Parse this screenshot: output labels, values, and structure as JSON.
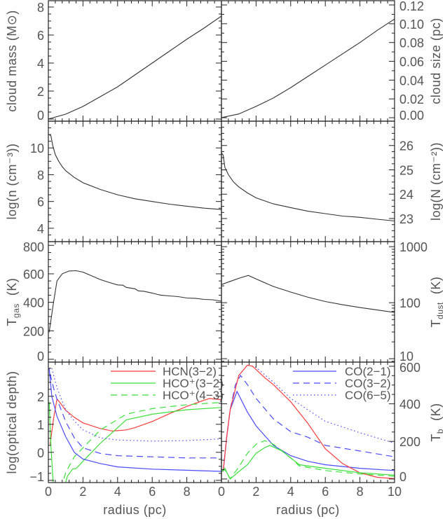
{
  "colors": {
    "axis": "#222222",
    "text": "#555555",
    "red": "#ff3b3b",
    "green": "#3be03b",
    "blue": "#4a4aff",
    "black": "#333333"
  },
  "xaxis": {
    "label": "radius (pc)",
    "xlim": [
      0,
      10
    ],
    "tick_labels_left": [
      "0",
      "2",
      "4",
      "6",
      "8"
    ],
    "tick_labels_right": [
      "0",
      "2",
      "4",
      "6",
      "8",
      "10"
    ]
  },
  "chart_data": [
    {
      "type": "line",
      "axis_side": "left",
      "scale": "linear",
      "ylabel": "cloud mass (M⊙)",
      "ylim": [
        -0.15,
        8.45
      ],
      "yticks": [
        0,
        2,
        4,
        6,
        8
      ],
      "ytick_labels": [
        "0",
        "2",
        "4",
        "6",
        "8"
      ],
      "yminor": 0.5,
      "series": [
        {
          "color": "black",
          "style": "solid",
          "x": [
            0,
            1,
            2,
            3,
            4,
            5,
            6,
            7,
            8,
            9,
            10
          ],
          "y": [
            0,
            0.35,
            0.9,
            1.6,
            2.3,
            3.15,
            4.0,
            4.85,
            5.7,
            6.5,
            7.35
          ]
        }
      ]
    },
    {
      "type": "line",
      "axis_side": "right",
      "scale": "linear",
      "ylabel": "cloud size (pc)",
      "ylim": [
        -0.0037,
        0.1245
      ],
      "yticks": [
        0,
        0.02,
        0.04,
        0.06,
        0.08,
        0.1,
        0.12
      ],
      "ytick_labels": [
        "0.00",
        "0.02",
        "0.04",
        "0.06",
        "0.08",
        "0.10",
        "0.12"
      ],
      "yminor": 0.01,
      "series": [
        {
          "color": "black",
          "style": "solid",
          "x": [
            0,
            1,
            2,
            3,
            4,
            5,
            6,
            7,
            8,
            9,
            10
          ],
          "y": [
            0,
            0.004,
            0.012,
            0.021,
            0.032,
            0.044,
            0.056,
            0.068,
            0.08,
            0.093,
            0.105
          ]
        }
      ]
    },
    {
      "type": "line",
      "axis_side": "left",
      "scale": "linear",
      "ylabel": "log(n (cm⁻³))",
      "ylim": [
        3.0,
        12.0
      ],
      "yticks": [
        4,
        6,
        8,
        10
      ],
      "ytick_labels": [
        "4",
        "6",
        "8",
        "10"
      ],
      "yminor": 0.5,
      "series": [
        {
          "color": "black",
          "style": "solid",
          "x": [
            0.05,
            0.15,
            0.25,
            0.4,
            0.6,
            0.8,
            1.0,
            1.5,
            2,
            3,
            4,
            5,
            6,
            7,
            8,
            9,
            10
          ],
          "y": [
            11.0,
            10.9,
            10.2,
            9.5,
            9.0,
            8.6,
            8.3,
            7.8,
            7.4,
            6.9,
            6.5,
            6.2,
            6.0,
            5.8,
            5.65,
            5.5,
            5.4
          ]
        }
      ]
    },
    {
      "type": "line",
      "axis_side": "right",
      "scale": "linear",
      "ylabel": "log(N (cm⁻²))",
      "ylim": [
        22.05,
        27.0
      ],
      "yticks": [
        23,
        24,
        25,
        26
      ],
      "ytick_labels": [
        "23",
        "24",
        "25",
        "26"
      ],
      "yminor": 0.25,
      "series": [
        {
          "color": "black",
          "style": "solid",
          "x": [
            0,
            0.1,
            0.2,
            0.4,
            0.7,
            1.0,
            1.5,
            2,
            3,
            4,
            5,
            6,
            7,
            8,
            9,
            10
          ],
          "y": [
            25.7,
            25.6,
            25.1,
            24.8,
            24.5,
            24.3,
            24.05,
            23.85,
            23.6,
            23.45,
            23.3,
            23.2,
            23.1,
            23.05,
            22.97,
            22.9
          ]
        }
      ]
    },
    {
      "type": "line",
      "axis_side": "left",
      "scale": "linear",
      "ylabel": "T",
      "ylabel_sub": "gas",
      "ylabel_unit": "(K)",
      "ylim": [
        -20,
        826
      ],
      "yticks": [
        0,
        200,
        400,
        600,
        800
      ],
      "ytick_labels": [
        "0",
        "200",
        "400",
        "600",
        "800"
      ],
      "yminor": 50,
      "series": [
        {
          "color": "black",
          "style": "solid",
          "x": [
            0.05,
            0.3,
            0.5,
            0.8,
            1.2,
            1.6,
            2.0,
            3.0,
            3.5,
            4.0,
            4.3,
            4.5,
            5.0,
            5.2,
            5.5,
            6.0,
            6.3,
            6.5,
            7.0,
            7.5,
            8.0,
            8.5,
            9.0,
            9.5,
            10
          ],
          "y": [
            190,
            400,
            550,
            600,
            620,
            622,
            612,
            560,
            540,
            522,
            520,
            505,
            495,
            480,
            478,
            465,
            455,
            450,
            445,
            440,
            430,
            428,
            420,
            418,
            408
          ]
        }
      ]
    },
    {
      "type": "line",
      "axis_side": "right",
      "scale": "log",
      "ylabel": "T",
      "ylabel_sub": "dust",
      "ylabel_unit": "(K)",
      "ylim": [
        8.7,
        1230
      ],
      "yticks": [
        10,
        100,
        1000
      ],
      "ytick_labels": [
        "10",
        "100",
        "1000"
      ],
      "series": [
        {
          "color": "black",
          "style": "solid",
          "x": [
            0,
            0.5,
            1.0,
            1.55,
            2,
            3,
            4,
            5,
            6,
            7,
            8,
            9,
            10
          ],
          "y": [
            211,
            240,
            272,
            307,
            265,
            195,
            155,
            125,
            105,
            92,
            82,
            74,
            67
          ]
        }
      ]
    },
    {
      "type": "line",
      "axis_side": "left",
      "scale": "linear",
      "ylabel": "log(optical depth)",
      "ylim": [
        -1.08,
        3.22
      ],
      "yticks": [
        -1,
        0,
        1,
        2
      ],
      "ytick_labels": [
        "−1",
        "0",
        "1",
        "2"
      ],
      "yminor": 0.25,
      "legend": "top-right",
      "series": [
        {
          "name": "HCN(3−2)",
          "color": "red",
          "style": "solid",
          "x": [
            0.1,
            0.3,
            0.5,
            0.7,
            1,
            1.5,
            2,
            3,
            3.7,
            4.5,
            5,
            6,
            7,
            8,
            9,
            9.3,
            10
          ],
          "y": [
            0.28,
            1.2,
            1.9,
            1.75,
            1.5,
            1.25,
            1.05,
            0.85,
            0.76,
            0.8,
            0.88,
            1.1,
            1.38,
            1.64,
            1.86,
            1.92,
            1.88
          ]
        },
        {
          "name": "HCO⁺(3−2)",
          "color": "green",
          "style": "solid",
          "x": [
            0.05,
            0.15,
            0.3,
            0.9,
            1.1,
            1.4,
            1.6,
            2,
            3,
            4.5,
            6,
            8,
            10
          ],
          "y": [
            1.8,
            0.2,
            -1.3,
            -1.3,
            -0.85,
            -0.6,
            -0.58,
            -0.32,
            0.32,
            1.16,
            1.36,
            1.52,
            1.6
          ]
        },
        {
          "name": "HCO⁺(4−3)",
          "color": "green",
          "style": "dashed",
          "x": [
            0.75,
            1,
            1.5,
            2,
            3,
            4.5,
            6,
            8,
            10
          ],
          "y": [
            -1.3,
            -0.72,
            -0.16,
            0.16,
            0.8,
            1.36,
            1.56,
            1.7,
            1.78
          ]
        },
        {
          "color": "blue",
          "style": "solid",
          "x": [
            0.05,
            0.2,
            0.5,
            1,
            1.5,
            2,
            3,
            4,
            6,
            8,
            10
          ],
          "y": [
            3.0,
            2.0,
            1.28,
            0.56,
            0.0,
            -0.24,
            -0.4,
            -0.52,
            -0.6,
            -0.64,
            -0.68
          ]
        },
        {
          "color": "blue",
          "style": "dashed",
          "x": [
            0.1,
            0.3,
            0.5,
            1,
            1.5,
            2,
            3,
            4,
            6,
            8,
            10
          ],
          "y": [
            2.8,
            2.3,
            1.9,
            1.1,
            0.52,
            0.16,
            -0.04,
            -0.12,
            -0.16,
            -0.2,
            -0.2
          ]
        },
        {
          "color": "blue",
          "style": "dotted",
          "x": [
            0.2,
            0.5,
            1,
            1.5,
            2,
            3,
            4,
            6,
            8,
            10
          ],
          "y": [
            3.0,
            2.3,
            1.52,
            1.12,
            0.8,
            0.52,
            0.44,
            0.4,
            0.42,
            0.48
          ]
        }
      ]
    },
    {
      "type": "line",
      "axis_side": "right",
      "scale": "linear",
      "ylabel": "T",
      "ylabel_sub": "b",
      "ylabel_unit": "(K)",
      "ylim": [
        -19,
        622
      ],
      "yticks": [
        0,
        200,
        400,
        600
      ],
      "ytick_labels": [
        "0",
        "200",
        "400",
        "600"
      ],
      "yminor": 50,
      "legend": "top-right",
      "series": [
        {
          "name": "CO(2−1)",
          "color": "blue",
          "style": "solid",
          "x": [
            0.1,
            0.3,
            0.5,
            0.9,
            1.5,
            2,
            3,
            4,
            5,
            6,
            8,
            10
          ],
          "y": [
            40,
            220,
            368,
            466,
            356,
            283,
            179,
            124,
            94,
            76,
            57,
            45
          ]
        },
        {
          "name": "CO(3−2)",
          "color": "blue",
          "style": "dashed",
          "x": [
            0.1,
            0.3,
            0.5,
            0.8,
            1.1,
            1.5,
            2,
            3,
            4,
            5,
            6,
            8,
            10
          ],
          "y": [
            40,
            220,
            368,
            500,
            551,
            502,
            429,
            320,
            252,
            222,
            179,
            149,
            118
          ]
        },
        {
          "name": "CO(6−5)",
          "color": "blue",
          "style": "dotted",
          "x": [
            0.1,
            0.3,
            0.5,
            1,
            1.5,
            2,
            3,
            4,
            5,
            6,
            8,
            10
          ],
          "y": [
            40,
            220,
            368,
            551,
            606,
            594,
            515,
            429,
            368,
            307,
            246,
            191
          ]
        },
        {
          "color": "red",
          "style": "solid",
          "x": [
            0.1,
            0.3,
            0.5,
            1,
            1.5,
            1.8,
            2.5,
            3,
            4,
            5,
            6,
            7,
            8,
            9,
            10
          ],
          "y": [
            40,
            220,
            368,
            551,
            606,
            600,
            539,
            502,
            411,
            295,
            161,
            82,
            33,
            9,
            2
          ]
        },
        {
          "color": "green",
          "style": "solid",
          "x": [
            0,
            0.2,
            0.5,
            1,
            1.5,
            2,
            2.5,
            2.8,
            3.5,
            4.5,
            6,
            8,
            10
          ],
          "y": [
            40,
            57,
            0,
            39,
            76,
            137,
            167,
            179,
            149,
            76,
            57,
            33,
            21
          ]
        },
        {
          "color": "green",
          "style": "dashed",
          "x": [
            0,
            0.2,
            0.5,
            1,
            1.5,
            2,
            2.5,
            3,
            4,
            4.5,
            6,
            8,
            10
          ],
          "y": [
            40,
            50,
            2,
            63,
            137,
            185,
            204,
            185,
            112,
            70,
            45,
            27,
            15
          ]
        }
      ]
    }
  ]
}
